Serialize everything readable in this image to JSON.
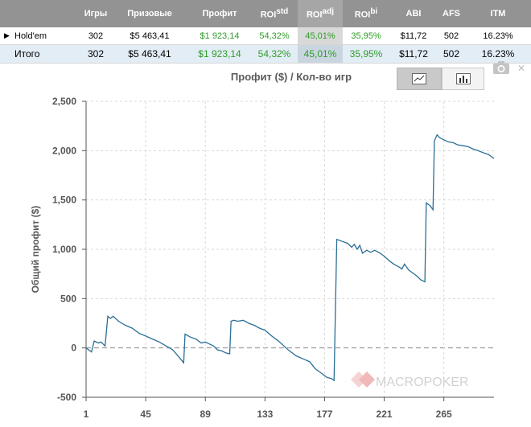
{
  "table": {
    "headers": [
      "",
      "Игры",
      "Призовые",
      "Профит",
      "ROI",
      "ROI",
      "ROI",
      "ABI",
      "AFS",
      "ITM"
    ],
    "roi_sup": [
      "std",
      "adj",
      "bi"
    ],
    "rows": [
      {
        "name": "Hold'em",
        "games": "302",
        "prize": "$5 463,41",
        "profit": "$1 923,14",
        "roi_std": "54,32%",
        "roi_adj": "45,01%",
        "roi_bi": "35,95%",
        "abi": "$11,72",
        "afs": "502",
        "itm": "16.23%"
      },
      {
        "name": "Итого",
        "games": "302",
        "prize": "$5 463,41",
        "profit": "$1 923,14",
        "roi_std": "54,32%",
        "roi_adj": "45,01%",
        "roi_bi": "35,95%",
        "abi": "$11,72",
        "afs": "502",
        "itm": "16.23%"
      }
    ]
  },
  "icons": {
    "line_chart": "line-chart-icon",
    "bar_chart": "bar-chart-icon",
    "camera": "camera-icon",
    "close": "close-icon",
    "expand": "expand-triangle-icon"
  },
  "watermark": "MACROPOKER",
  "colors": {
    "header_bg": "#939393",
    "green": "#2f9d27",
    "line": "#2a6f96",
    "total_row": "#e3edf6"
  },
  "chart_data": {
    "type": "line",
    "title": "Профит ($) / Кол-во игр",
    "xlabel": "",
    "ylabel": "Общий профит ($)",
    "xlim": [
      1,
      302
    ],
    "ylim": [
      -500,
      2500
    ],
    "x_ticks": [
      1,
      45,
      89,
      133,
      177,
      221,
      265
    ],
    "y_ticks": [
      -500,
      0,
      500,
      1000,
      1500,
      2000,
      2500
    ],
    "y_tick_labels": [
      "-500",
      "0",
      "500",
      "1,000",
      "1,500",
      "2,000",
      "2,500"
    ],
    "grid": true,
    "series": [
      {
        "name": "",
        "points": [
          [
            1,
            0
          ],
          [
            5,
            -40
          ],
          [
            7,
            70
          ],
          [
            10,
            50
          ],
          [
            12,
            60
          ],
          [
            15,
            20
          ],
          [
            17,
            320
          ],
          [
            19,
            300
          ],
          [
            21,
            320
          ],
          [
            25,
            270
          ],
          [
            30,
            230
          ],
          [
            35,
            200
          ],
          [
            40,
            150
          ],
          [
            45,
            120
          ],
          [
            50,
            90
          ],
          [
            55,
            60
          ],
          [
            60,
            20
          ],
          [
            65,
            -20
          ],
          [
            70,
            -100
          ],
          [
            73,
            -150
          ],
          [
            74,
            140
          ],
          [
            78,
            110
          ],
          [
            82,
            90
          ],
          [
            86,
            50
          ],
          [
            89,
            60
          ],
          [
            92,
            40
          ],
          [
            95,
            20
          ],
          [
            98,
            -20
          ],
          [
            101,
            -30
          ],
          [
            104,
            -50
          ],
          [
            107,
            -60
          ],
          [
            108,
            270
          ],
          [
            110,
            280
          ],
          [
            113,
            270
          ],
          [
            117,
            280
          ],
          [
            121,
            250
          ],
          [
            125,
            230
          ],
          [
            129,
            200
          ],
          [
            133,
            180
          ],
          [
            138,
            120
          ],
          [
            143,
            70
          ],
          [
            147,
            20
          ],
          [
            151,
            -30
          ],
          [
            156,
            -80
          ],
          [
            161,
            -110
          ],
          [
            166,
            -140
          ],
          [
            170,
            -210
          ],
          [
            175,
            -260
          ],
          [
            179,
            -300
          ],
          [
            182,
            -310
          ],
          [
            184,
            -330
          ],
          [
            186,
            1100
          ],
          [
            190,
            1080
          ],
          [
            194,
            1060
          ],
          [
            197,
            1020
          ],
          [
            199,
            1050
          ],
          [
            201,
            1000
          ],
          [
            203,
            1040
          ],
          [
            205,
            960
          ],
          [
            208,
            990
          ],
          [
            211,
            970
          ],
          [
            214,
            990
          ],
          [
            218,
            960
          ],
          [
            221,
            930
          ],
          [
            225,
            880
          ],
          [
            228,
            850
          ],
          [
            232,
            820
          ],
          [
            234,
            800
          ],
          [
            236,
            850
          ],
          [
            239,
            790
          ],
          [
            242,
            760
          ],
          [
            245,
            730
          ],
          [
            248,
            690
          ],
          [
            251,
            670
          ],
          [
            252,
            1470
          ],
          [
            255,
            1440
          ],
          [
            257,
            1400
          ],
          [
            258,
            2100
          ],
          [
            260,
            2160
          ],
          [
            262,
            2130
          ],
          [
            265,
            2110
          ],
          [
            268,
            2090
          ],
          [
            272,
            2080
          ],
          [
            275,
            2060
          ],
          [
            279,
            2050
          ],
          [
            283,
            2040
          ],
          [
            286,
            2020
          ],
          [
            290,
            2000
          ],
          [
            294,
            1980
          ],
          [
            298,
            1960
          ],
          [
            302,
            1920
          ]
        ]
      }
    ]
  }
}
